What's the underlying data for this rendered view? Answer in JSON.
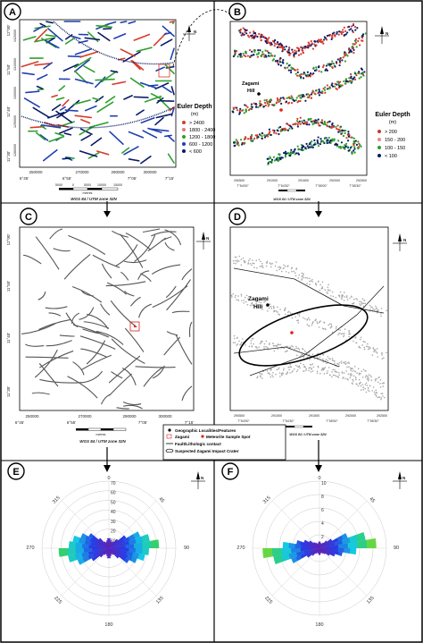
{
  "panels": {
    "A": {
      "letter": "A",
      "x_ticks": [
        "250000",
        "270000",
        "290000",
        "300000"
      ],
      "lon_ticks": [
        "6°45'",
        "6°55'",
        "7°05'",
        "7°15'"
      ],
      "lat_ticks": [
        "12°00'",
        "11°50'",
        "11°40'",
        "11°30'"
      ],
      "utm_y_ticks": [
        "1320000",
        "1310000",
        "1300000",
        "1290000",
        "1280000"
      ],
      "legend_title": "Euler Depth",
      "legend_unit": "(m)",
      "legend_items": [
        {
          "label": "> 2400",
          "color": "#d93a2b"
        },
        {
          "label": "1800 - 2400",
          "color": "#e07a73"
        },
        {
          "label": "1200 - 1800",
          "color": "#2ca02c"
        },
        {
          "label": "600 - 1200",
          "color": "#1f3fb0"
        },
        {
          "label": "< 600",
          "color": "#0b1a66"
        }
      ],
      "scale_ticks": [
        "5000",
        "0",
        "5000",
        "10000",
        "15000"
      ],
      "scale_unit": "metres",
      "crs": "WGS 84 / UTM zone 32N"
    },
    "B": {
      "letter": "B",
      "hill_label": "Zagami\nHill",
      "hill_label_line1": "Zagami",
      "hill_label_line2": "Hill",
      "x_ticks": [
        "290500",
        "291000",
        "291500",
        "292000",
        "292500"
      ],
      "lon_ticks": [
        "7°54'00\"",
        "7°54'30\"",
        "7°55'00\"",
        "7°55'30\""
      ],
      "legend_title": "Euler Depth",
      "legend_unit": "(m)",
      "legend_items": [
        {
          "label": "> 200",
          "color": "#c9392c"
        },
        {
          "label": "150 - 200",
          "color": "#e58b84"
        },
        {
          "label": "100 - 150",
          "color": "#2ca02c"
        },
        {
          "label": "< 100",
          "color": "#0b1a66"
        }
      ],
      "crs": "WGS 84 / UTM zone 32N"
    },
    "C": {
      "letter": "C",
      "x_ticks": [
        "250000",
        "270000",
        "290000",
        "300000"
      ],
      "lon_ticks": [
        "6°45'",
        "6°55'",
        "7°05'",
        "7°15'"
      ],
      "lat_ticks": [
        "12°00'",
        "11°50'",
        "11°40'",
        "11°30'"
      ],
      "scale_unit": "metres",
      "crs": "WGS 84 / UTM zone 32N"
    },
    "D": {
      "letter": "D",
      "hill_label_line1": "Zagami",
      "hill_label_line2": "Hill",
      "x_ticks": [
        "290500",
        "291000",
        "291500",
        "292000",
        "292500"
      ],
      "lon_ticks": [
        "7°54'00\"",
        "7°54'30\"",
        "7°55'00\"",
        "7°55'30\""
      ],
      "crs": "WGS 84 / UTM zone 32N"
    },
    "E": {
      "letter": "E",
      "radial_ticks": [
        "10",
        "20",
        "30",
        "40",
        "50",
        "60",
        "70"
      ],
      "directions": {
        "n": "0",
        "ne": "45",
        "e": "90",
        "se": "135",
        "s": "180",
        "sw": "225",
        "w": "270",
        "nw": "315"
      }
    },
    "F": {
      "letter": "F",
      "radial_ticks": [
        "2",
        "4",
        "6",
        "8",
        "10"
      ],
      "directions": {
        "n": "0",
        "ne": "45",
        "e": "90",
        "se": "135",
        "s": "180",
        "sw": "225",
        "w": "270",
        "nw": "315"
      }
    }
  },
  "main_legend": {
    "items": [
      {
        "label": "Geographic Localities/Features",
        "symbol": "black-dot"
      },
      {
        "label": "Zagami",
        "symbol": "red-box"
      },
      {
        "label": "Meteorite Sample Spot",
        "symbol": "red-dot"
      },
      {
        "label": "Fault/Lithologic contact",
        "symbol": "line"
      },
      {
        "label": "Suspected Zagami Impact Crater",
        "symbol": "ellipse"
      }
    ]
  },
  "north_label": "N",
  "colors": {
    "euler_red": "#d93a2b",
    "euler_green": "#2ca02c",
    "euler_blue": "#1f3fb0",
    "euler_navy": "#0b1a66",
    "lineament_gray": "#555555",
    "sample_red": "#e0201b"
  }
}
